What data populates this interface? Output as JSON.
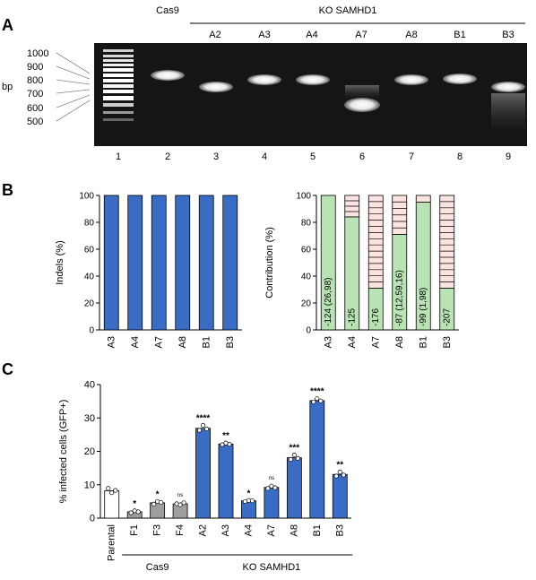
{
  "panel_labels": [
    "A",
    "B",
    "C"
  ],
  "panel_a": {
    "header_control": "Cas9",
    "header_ko": "KO SAMHD1",
    "clone_labels": [
      "A2",
      "A3",
      "A4",
      "A7",
      "A8",
      "B1",
      "B3"
    ],
    "lane_numbers": [
      "1",
      "2",
      "3",
      "4",
      "5",
      "6",
      "7",
      "8",
      "9"
    ],
    "ladder_sizes": [
      "1000",
      "900",
      "800",
      "700",
      "600",
      "500"
    ],
    "unit": "bp"
  },
  "chart_data": [
    {
      "type": "bar",
      "categories": [
        "A3",
        "A4",
        "A7",
        "A8",
        "B1",
        "B3"
      ],
      "values": [
        100,
        100,
        100,
        100,
        100,
        100
      ],
      "ylabel": "Indels (%)",
      "ylim": [
        0,
        100
      ],
      "yticks": [
        "0",
        "20",
        "40",
        "60",
        "80",
        "100"
      ],
      "color": "#3b6cc4"
    },
    {
      "type": "bar",
      "categories": [
        "A3",
        "A4",
        "A7",
        "A8",
        "B1",
        "B3"
      ],
      "ylabel": "Contribution (%)",
      "ylim": [
        0,
        100
      ],
      "yticks": [
        "0",
        "20",
        "40",
        "60",
        "80",
        "100"
      ],
      "main_values": [
        100,
        84,
        31,
        71,
        95,
        31
      ],
      "main_labels": [
        "-124 (26,98)",
        "-125",
        "-176",
        "-87 (12,59,16)",
        "-99 (1,98)",
        "-207"
      ],
      "main_color": "#b9e3b4",
      "other_color": "#fbe3e1"
    },
    {
      "type": "bar",
      "categories": [
        "Parental",
        "F1",
        "F3",
        "F4",
        "A2",
        "A3",
        "A4",
        "A7",
        "A8",
        "B1",
        "B3"
      ],
      "values": [
        8.2,
        1.9,
        4.6,
        4.3,
        26.9,
        22.2,
        5.2,
        9.2,
        18.1,
        35.2,
        13.1
      ],
      "points": [
        [
          8.9,
          7.6,
          8.3
        ],
        [
          1.6,
          2.2,
          1.9
        ],
        [
          4.2,
          5.0,
          4.7
        ],
        [
          4.3,
          4.0,
          4.6
        ],
        [
          26.3,
          27.8,
          26.7
        ],
        [
          22.0,
          22.5,
          22.1
        ],
        [
          5.0,
          5.3,
          5.2
        ],
        [
          8.9,
          9.6,
          9.1
        ],
        [
          17.6,
          18.9,
          17.9
        ],
        [
          34.8,
          35.8,
          35.1
        ],
        [
          12.6,
          13.8,
          12.9
        ]
      ],
      "significance": [
        "",
        "*",
        "*",
        "ns",
        "****",
        "**",
        "*",
        "ns",
        "***",
        "****",
        "**"
      ],
      "colors": [
        "#ffffff",
        "#9e9e9e",
        "#9e9e9e",
        "#9e9e9e",
        "#3b6cc4",
        "#3b6cc4",
        "#3b6cc4",
        "#3b6cc4",
        "#3b6cc4",
        "#3b6cc4",
        "#3b6cc4"
      ],
      "ylabel": "% infected cells (GFP+)",
      "ylim": [
        0,
        40
      ],
      "yticks": [
        "0",
        "10",
        "20",
        "30",
        "40"
      ],
      "group_labels": [
        "Cas9",
        "KO  SAMHD1"
      ]
    }
  ]
}
